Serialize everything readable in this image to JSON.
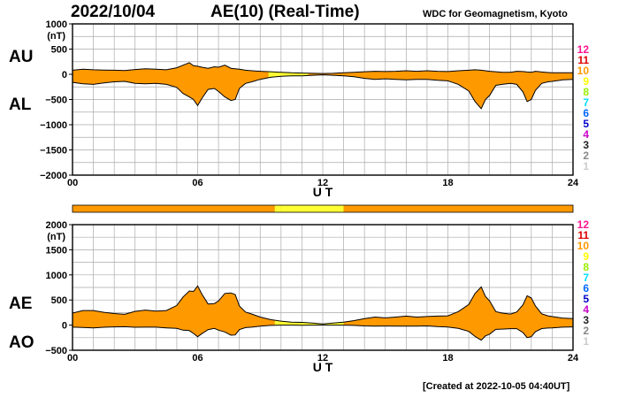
{
  "header": {
    "date": "2022/10/04",
    "title": "AE(10) (Real-Time)",
    "source": "WDC for Geomagnetism, Kyoto"
  },
  "footer": {
    "created": "[Created at 2022-10-05 04:40UT]"
  },
  "colors": {
    "orange": "#ff9900",
    "yellow": "#ffff33",
    "grid": "#aaaaaa",
    "line": "#000000"
  },
  "station_scale": {
    "labels": [
      "12",
      "11",
      "10",
      "9",
      "8",
      "7",
      "6",
      "5",
      "4",
      "3",
      "2",
      "1"
    ],
    "colors": [
      "#ff1493",
      "#dd0000",
      "#ff9900",
      "#ffff00",
      "#99ee00",
      "#00ddff",
      "#0066ff",
      "#0000cc",
      "#cc00cc",
      "#222222",
      "#888888",
      "#cccccc"
    ]
  },
  "chart_data": [
    {
      "type": "area",
      "panel": "top",
      "series_labels": [
        "AU",
        "AL"
      ],
      "unit_label": "(nT)",
      "xlabel": "U T",
      "x_ticks": [
        "00",
        "06",
        "12",
        "18",
        "24"
      ],
      "xlim": [
        0,
        24
      ],
      "ylim": [
        -2000,
        1000
      ],
      "y_ticks": [
        1000,
        500,
        0,
        -500,
        -1000,
        -1500,
        -2000
      ],
      "y_tick_labels": [
        "1000",
        "500",
        "0",
        "−500",
        "−1000",
        "−1500",
        "−2000"
      ],
      "grid": true,
      "x": [
        0,
        0.5,
        1,
        1.5,
        2,
        2.5,
        3,
        3.5,
        4,
        4.5,
        5,
        5.3,
        5.6,
        5.8,
        6,
        6.2,
        6.5,
        6.8,
        7,
        7.3,
        7.6,
        7.8,
        8,
        8.3,
        8.6,
        9,
        9.5,
        10,
        10.5,
        11,
        11.5,
        12,
        12.5,
        13,
        13.5,
        14,
        14.5,
        15,
        15.5,
        16,
        16.5,
        17,
        17.5,
        18,
        18.5,
        19,
        19.3,
        19.6,
        19.8,
        20,
        20.3,
        20.6,
        21,
        21.3,
        21.6,
        21.8,
        22,
        22.2,
        22.5,
        22.8,
        23,
        23.5,
        24
      ],
      "AU": [
        80,
        100,
        90,
        85,
        80,
        75,
        95,
        110,
        100,
        90,
        130,
        180,
        230,
        170,
        160,
        140,
        120,
        150,
        140,
        180,
        120,
        110,
        100,
        80,
        70,
        60,
        50,
        40,
        30,
        25,
        20,
        15,
        20,
        30,
        40,
        50,
        60,
        55,
        60,
        70,
        60,
        70,
        60,
        55,
        70,
        80,
        90,
        80,
        70,
        60,
        50,
        40,
        40,
        60,
        55,
        45,
        40,
        60,
        45,
        35,
        30,
        30,
        30
      ],
      "AL": [
        -160,
        -190,
        -200,
        -170,
        -150,
        -140,
        -180,
        -190,
        -180,
        -200,
        -260,
        -380,
        -450,
        -500,
        -620,
        -480,
        -300,
        -280,
        -340,
        -450,
        -520,
        -500,
        -280,
        -180,
        -150,
        -100,
        -60,
        -40,
        -30,
        -30,
        -20,
        -10,
        -20,
        -30,
        -50,
        -80,
        -100,
        -90,
        -100,
        -110,
        -100,
        -100,
        -120,
        -130,
        -200,
        -330,
        -540,
        -680,
        -500,
        -420,
        -220,
        -200,
        -180,
        -200,
        -350,
        -540,
        -500,
        -320,
        -180,
        -150,
        -140,
        -110,
        -100
      ],
      "series_colors": [
        {
          "x0": 0,
          "x1": 9.4,
          "color": "orange"
        },
        {
          "x0": 9.4,
          "x1": 11.3,
          "color": "yellow"
        },
        {
          "x0": 11.3,
          "x1": 13.0,
          "color": "orange"
        },
        {
          "x0": 13.0,
          "x1": 24,
          "color": "orange"
        }
      ]
    },
    {
      "type": "area",
      "panel": "bottom",
      "series_labels": [
        "AE",
        "AO"
      ],
      "unit_label": "(nT)",
      "xlabel": "U T",
      "x_ticks": [
        "00",
        "06",
        "12",
        "18",
        "24"
      ],
      "xlim": [
        0,
        24
      ],
      "ylim": [
        -500,
        2000
      ],
      "y_ticks": [
        2000,
        1500,
        1000,
        500,
        0,
        -500
      ],
      "y_tick_labels": [
        "2000",
        "1500",
        "1000",
        "500",
        "0",
        "−500"
      ],
      "grid": true,
      "x": [
        0,
        0.5,
        1,
        1.5,
        2,
        2.5,
        3,
        3.5,
        4,
        4.5,
        5,
        5.3,
        5.6,
        5.8,
        6,
        6.2,
        6.5,
        6.8,
        7,
        7.3,
        7.6,
        7.8,
        8,
        8.3,
        8.6,
        9,
        9.5,
        10,
        10.5,
        11,
        11.5,
        12,
        12.5,
        13,
        13.5,
        14,
        14.5,
        15,
        15.5,
        16,
        16.5,
        17,
        17.5,
        18,
        18.5,
        19,
        19.3,
        19.6,
        19.8,
        20,
        20.3,
        20.6,
        21,
        21.3,
        21.6,
        21.8,
        22,
        22.2,
        22.5,
        22.8,
        23,
        23.5,
        24
      ],
      "AE": [
        240,
        290,
        290,
        255,
        230,
        215,
        275,
        300,
        280,
        290,
        390,
        560,
        680,
        670,
        780,
        620,
        420,
        430,
        480,
        630,
        640,
        610,
        380,
        260,
        220,
        160,
        110,
        80,
        60,
        55,
        40,
        25,
        40,
        60,
        90,
        130,
        160,
        145,
        160,
        180,
        160,
        170,
        180,
        185,
        270,
        410,
        630,
        760,
        570,
        480,
        270,
        240,
        220,
        260,
        405,
        585,
        540,
        380,
        225,
        185,
        170,
        140,
        130
      ],
      "AO": [
        -40,
        -45,
        -55,
        -42,
        -35,
        -32,
        -42,
        -40,
        -40,
        -55,
        -65,
        -100,
        -110,
        -165,
        -230,
        -170,
        -90,
        -65,
        -100,
        -135,
        -200,
        -195,
        -90,
        -50,
        -40,
        -20,
        -5,
        0,
        0,
        -2,
        0,
        2,
        0,
        0,
        -5,
        -15,
        -20,
        -18,
        -20,
        -20,
        -20,
        -15,
        -30,
        -38,
        -65,
        -125,
        -225,
        -300,
        -215,
        -180,
        -85,
        -80,
        -70,
        -70,
        -148,
        -248,
        -230,
        -130,
        -68,
        -58,
        -55,
        -40,
        -35
      ]
    }
  ],
  "coverage_bar": [
    {
      "x0": 0,
      "x1": 9.7,
      "color": "orange"
    },
    {
      "x0": 9.7,
      "x1": 10.0,
      "color": "yellow"
    },
    {
      "x0": 10.0,
      "x1": 13.0,
      "color": "yellow"
    },
    {
      "x0": 13.0,
      "x1": 24,
      "color": "orange"
    }
  ]
}
